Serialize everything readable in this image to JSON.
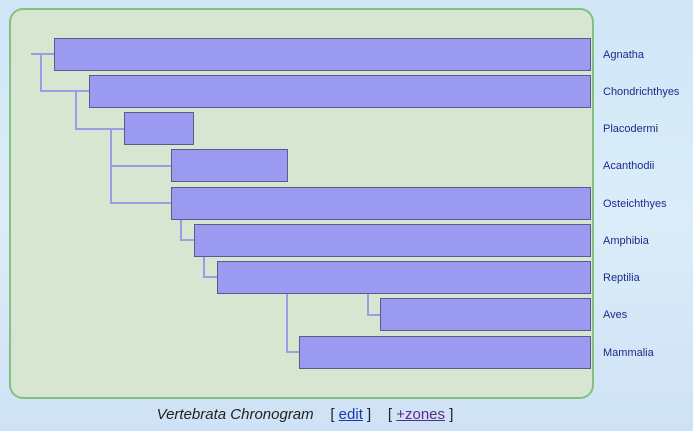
{
  "chronogram": {
    "taxa": [
      {
        "name": "Agnatha"
      },
      {
        "name": "Chondrichthyes"
      },
      {
        "name": "Placodermi"
      },
      {
        "name": "Acanthodii"
      },
      {
        "name": "Osteichthyes"
      },
      {
        "name": "Amphibia"
      },
      {
        "name": "Reptilia"
      },
      {
        "name": "Aves"
      },
      {
        "name": "Mammalia"
      }
    ],
    "colors": {
      "bar": "#9a9af0",
      "bar_border": "#5a5a8c",
      "tree_line": "#9b9be6",
      "panel": "#d7e6d0",
      "panel_border": "#83c183",
      "label": "#1a2b8c"
    }
  },
  "caption": {
    "title": "Vertebrata Chronogram",
    "edit_label": "edit",
    "zones_label": "+zones"
  }
}
